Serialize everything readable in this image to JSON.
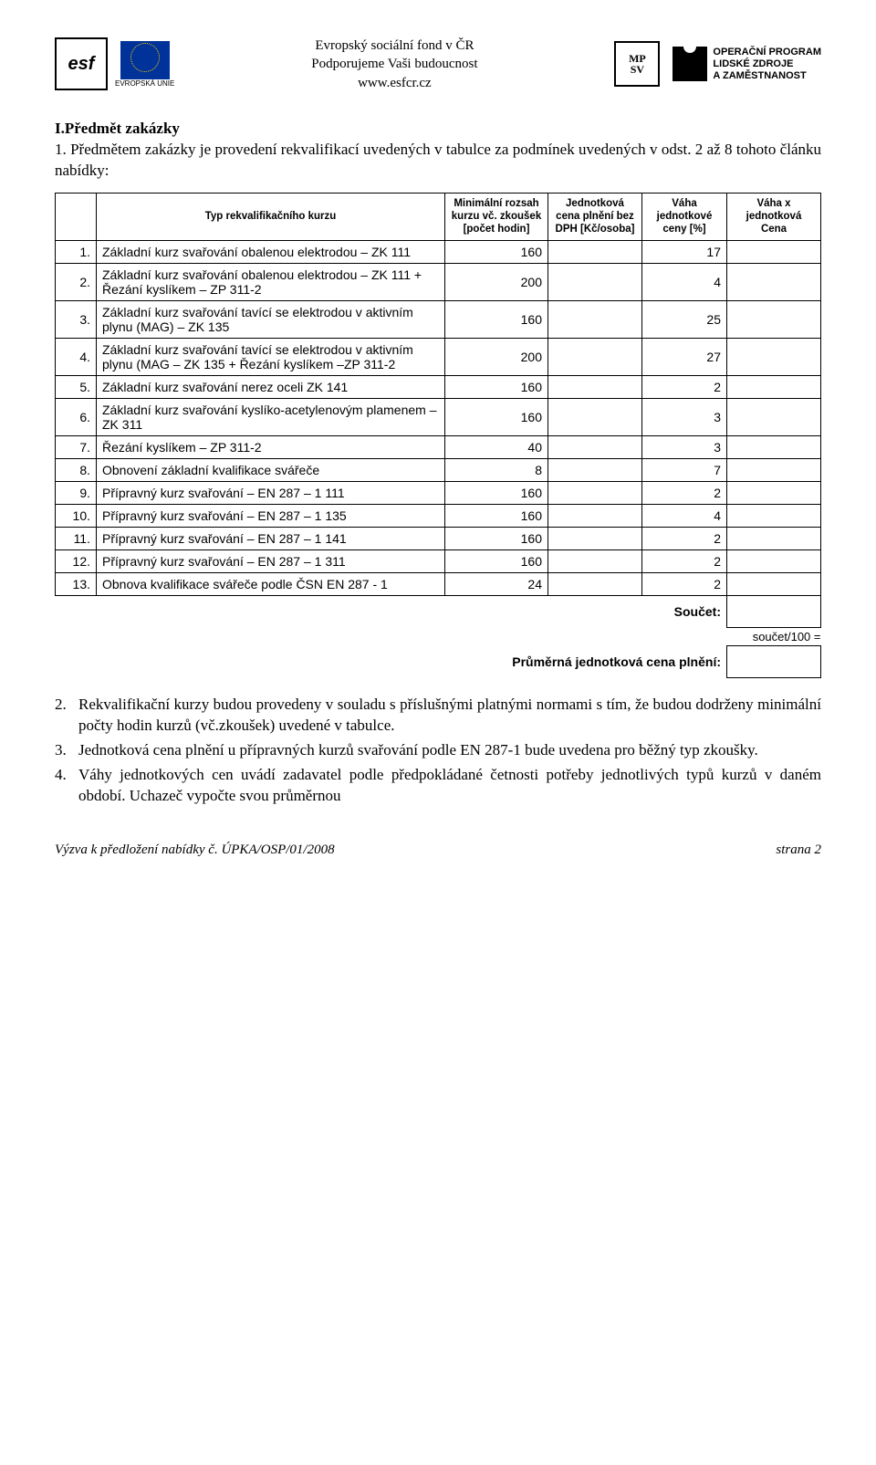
{
  "header": {
    "center_lines": [
      "Evropský sociální fond v ČR",
      "Podporujeme Vaši budoucnost",
      "www.esfcr.cz"
    ],
    "eu_label": "EVROPSKÁ UNIE",
    "esf_text": "esf",
    "mpsv_l1": "MP",
    "mpsv_l2": "SV",
    "op_l1": "OPERAČNÍ PROGRAM",
    "op_l2": "LIDSKÉ ZDROJE",
    "op_l3": "A ZAMĚSTNANOST"
  },
  "section": {
    "title": "I.Předmět zakázky",
    "para1": "1.  Předmětem zakázky je provedení rekvalifikací uvedených v tabulce za podmínek uvedených v odst. 2 až 8 tohoto článku nabídky:"
  },
  "table": {
    "head": {
      "type": "Typ rekvalifikačního kurzu",
      "hours": "Minimální rozsah kurzu vč. zkoušek [počet hodin]",
      "price": "Jednotková cena plnění bez DPH [Kč/osoba]",
      "weight": "Váha jednotkové ceny [%]",
      "wxcena": "Váha x jednotková Cena"
    },
    "rows": [
      {
        "n": "1.",
        "name": "Základní kurz svařování obalenou elektrodou – ZK 111",
        "hours": "160",
        "weight": "17"
      },
      {
        "n": "2.",
        "name": "Základní kurz svařování obalenou elektrodou – ZK 111 + Řezání kyslíkem – ZP 311-2",
        "hours": "200",
        "weight": "4"
      },
      {
        "n": "3.",
        "name": "Základní kurz svařování tavící se elektrodou v aktivním plynu (MAG) – ZK 135",
        "hours": "160",
        "weight": "25"
      },
      {
        "n": "4.",
        "name": "Základní kurz svařování tavící se elektrodou v aktivním plynu (MAG – ZK 135 + Řezání kyslíkem –ZP 311-2",
        "hours": "200",
        "weight": "27"
      },
      {
        "n": "5.",
        "name": "Základní kurz svařování nerez oceli ZK 141",
        "hours": "160",
        "weight": "2"
      },
      {
        "n": "6.",
        "name": "Základní kurz svařování kyslíko-acetylenovým plamenem – ZK 311",
        "hours": "160",
        "weight": "3"
      },
      {
        "n": "7.",
        "name": "Řezání kyslíkem – ZP 311-2",
        "hours": "40",
        "weight": "3"
      },
      {
        "n": "8.",
        "name": "Obnovení základní kvalifikace svářeče",
        "hours": "8",
        "weight": "7"
      },
      {
        "n": "9.",
        "name": "Přípravný kurz svařování – EN 287 – 1 111",
        "hours": "160",
        "weight": "2"
      },
      {
        "n": "10.",
        "name": "Přípravný kurz svařování – EN 287 – 1 135",
        "hours": "160",
        "weight": "4"
      },
      {
        "n": "11.",
        "name": "Přípravný kurz svařování – EN 287 – 1 141",
        "hours": "160",
        "weight": "2"
      },
      {
        "n": "12.",
        "name": "Přípravný kurz svařování – EN 287 – 1 311",
        "hours": "160",
        "weight": "2"
      },
      {
        "n": "13.",
        "name": "Obnova kvalifikace svářeče podle ČSN EN 287 - 1",
        "hours": "24",
        "weight": "2"
      }
    ],
    "sum_label": "Součet:",
    "sum_note": "součet/100 =",
    "avg_label": "Průměrná jednotková cena plnění:"
  },
  "footer_items": [
    {
      "n": "2.",
      "t": "Rekvalifikační kurzy budou provedeny v souladu s příslušnými platnými normami s tím, že budou dodrženy minimální počty hodin kurzů (vč.zkoušek) uvedené v tabulce."
    },
    {
      "n": "3.",
      "t": "Jednotková cena plnění u přípravných kurzů svařování podle EN 287-1 bude uvedena pro běžný typ zkoušky."
    },
    {
      "n": "4.",
      "t": "Váhy jednotkových cen uvádí zadavatel podle předpokládané četnosti potřeby jednotlivých typů kurzů v daném období. Uchazeč vypočte svou průměrnou"
    }
  ],
  "page_footer": {
    "left": "Výzva k předložení nabídky č. ÚPKA/OSP/01/2008",
    "right": "strana 2"
  }
}
